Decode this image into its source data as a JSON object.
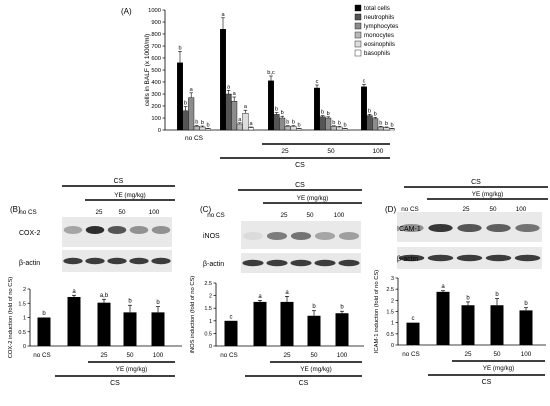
{
  "panels": {
    "A": {
      "letter": "(A)"
    },
    "B": {
      "letter": "(B)"
    },
    "C": {
      "letter": "(C)"
    },
    "D": {
      "letter": "(D)"
    }
  },
  "common": {
    "no_cs": "no CS",
    "cs": "CS",
    "ye_label": "YE (mg/kg)",
    "doses": [
      "25",
      "50",
      "100"
    ],
    "beta_actin": "β-actin"
  },
  "chart_data": [
    {
      "panel": "A",
      "type": "bar",
      "ylabel": "cells in BALF (x 1000/ml)",
      "ylim": [
        0,
        1000
      ],
      "yticks": [
        "0",
        "100",
        "200",
        "300",
        "400",
        "500",
        "600",
        "700",
        "800",
        "900",
        "1000"
      ],
      "categories": [
        "no CS",
        "CS",
        "25",
        "50",
        "100"
      ],
      "series": [
        {
          "name": "total cells",
          "color": "#000000",
          "values": [
            560,
            840,
            410,
            350,
            360
          ],
          "errors": [
            95,
            95,
            40,
            25,
            20
          ],
          "labels": [
            "b",
            "a",
            "b,c",
            "c",
            "c"
          ]
        },
        {
          "name": "neutrophils",
          "color": "#555555",
          "values": [
            160,
            300,
            130,
            110,
            120
          ],
          "errors": [
            35,
            30,
            15,
            10,
            10
          ],
          "labels": [
            "b",
            "a",
            "b",
            "b",
            "b"
          ]
        },
        {
          "name": "lymphocytes",
          "color": "#8c8c8c",
          "values": [
            270,
            240,
            100,
            100,
            95
          ],
          "errors": [
            40,
            35,
            15,
            10,
            10
          ],
          "labels": [
            "a",
            "a",
            "b",
            "b",
            "b"
          ]
        },
        {
          "name": "monocytes",
          "color": "#b9b9b9",
          "values": [
            30,
            50,
            30,
            30,
            25
          ],
          "errors": [
            8,
            10,
            6,
            5,
            5
          ],
          "labels": [
            "b",
            "a",
            "b",
            "b",
            "b"
          ]
        },
        {
          "name": "eosinophils",
          "color": "#dddddd",
          "values": [
            25,
            140,
            30,
            25,
            20
          ],
          "errors": [
            8,
            25,
            6,
            5,
            5
          ],
          "labels": [
            "b",
            "a",
            "b",
            "b",
            "b"
          ]
        },
        {
          "name": "basophils",
          "color": "#ffffff",
          "values": [
            10,
            20,
            10,
            10,
            10
          ],
          "errors": [
            3,
            5,
            3,
            3,
            3
          ],
          "labels": [
            "b",
            "a",
            "b",
            "b",
            "b"
          ]
        }
      ]
    },
    {
      "panel": "B",
      "type": "bar",
      "blot_labels": [
        "COX-2",
        "β-actin"
      ],
      "ylabel": "COX-2 induction (fold of no CS)",
      "ylim": [
        0,
        2
      ],
      "yticks": [
        "0",
        "0.5",
        "1",
        "1.5",
        "2"
      ],
      "categories": [
        "no CS",
        "CS",
        "25",
        "50",
        "100"
      ],
      "values": [
        1.0,
        1.72,
        1.52,
        1.18,
        1.18
      ],
      "errors": [
        0,
        0.06,
        0.12,
        0.25,
        0.2
      ],
      "labels": [
        "b",
        "a",
        "a,b",
        "b",
        "b"
      ]
    },
    {
      "panel": "C",
      "type": "bar",
      "blot_labels": [
        "iNOS",
        "β-actin"
      ],
      "ylabel": "iNOS induction (fold of no CS)",
      "ylim": [
        0,
        2.5
      ],
      "yticks": [
        "0",
        "0.5",
        "1",
        "1.5",
        "2",
        "2.5"
      ],
      "categories": [
        "no CS",
        "CS",
        "25",
        "50",
        "100"
      ],
      "values": [
        1.0,
        1.75,
        1.75,
        1.2,
        1.3
      ],
      "errors": [
        0,
        0.06,
        0.22,
        0.2,
        0.08
      ],
      "labels": [
        "c",
        "a",
        "a",
        "b",
        "b"
      ]
    },
    {
      "panel": "D",
      "type": "bar",
      "blot_labels": [
        "ICAM-1",
        "β-actin"
      ],
      "ylabel": "ICAM-1 induction (fold of no CS)",
      "ylim": [
        0,
        3
      ],
      "yticks": [
        "0",
        "0.5",
        "1",
        "1.5",
        "2",
        "2.5",
        "3"
      ],
      "categories": [
        "no CS",
        "CS",
        "25",
        "50",
        "100"
      ],
      "values": [
        1.0,
        2.38,
        1.78,
        1.78,
        1.55
      ],
      "errors": [
        0,
        0.05,
        0.15,
        0.3,
        0.12
      ],
      "labels": [
        "c",
        "a",
        "b",
        "b",
        "b"
      ]
    }
  ]
}
